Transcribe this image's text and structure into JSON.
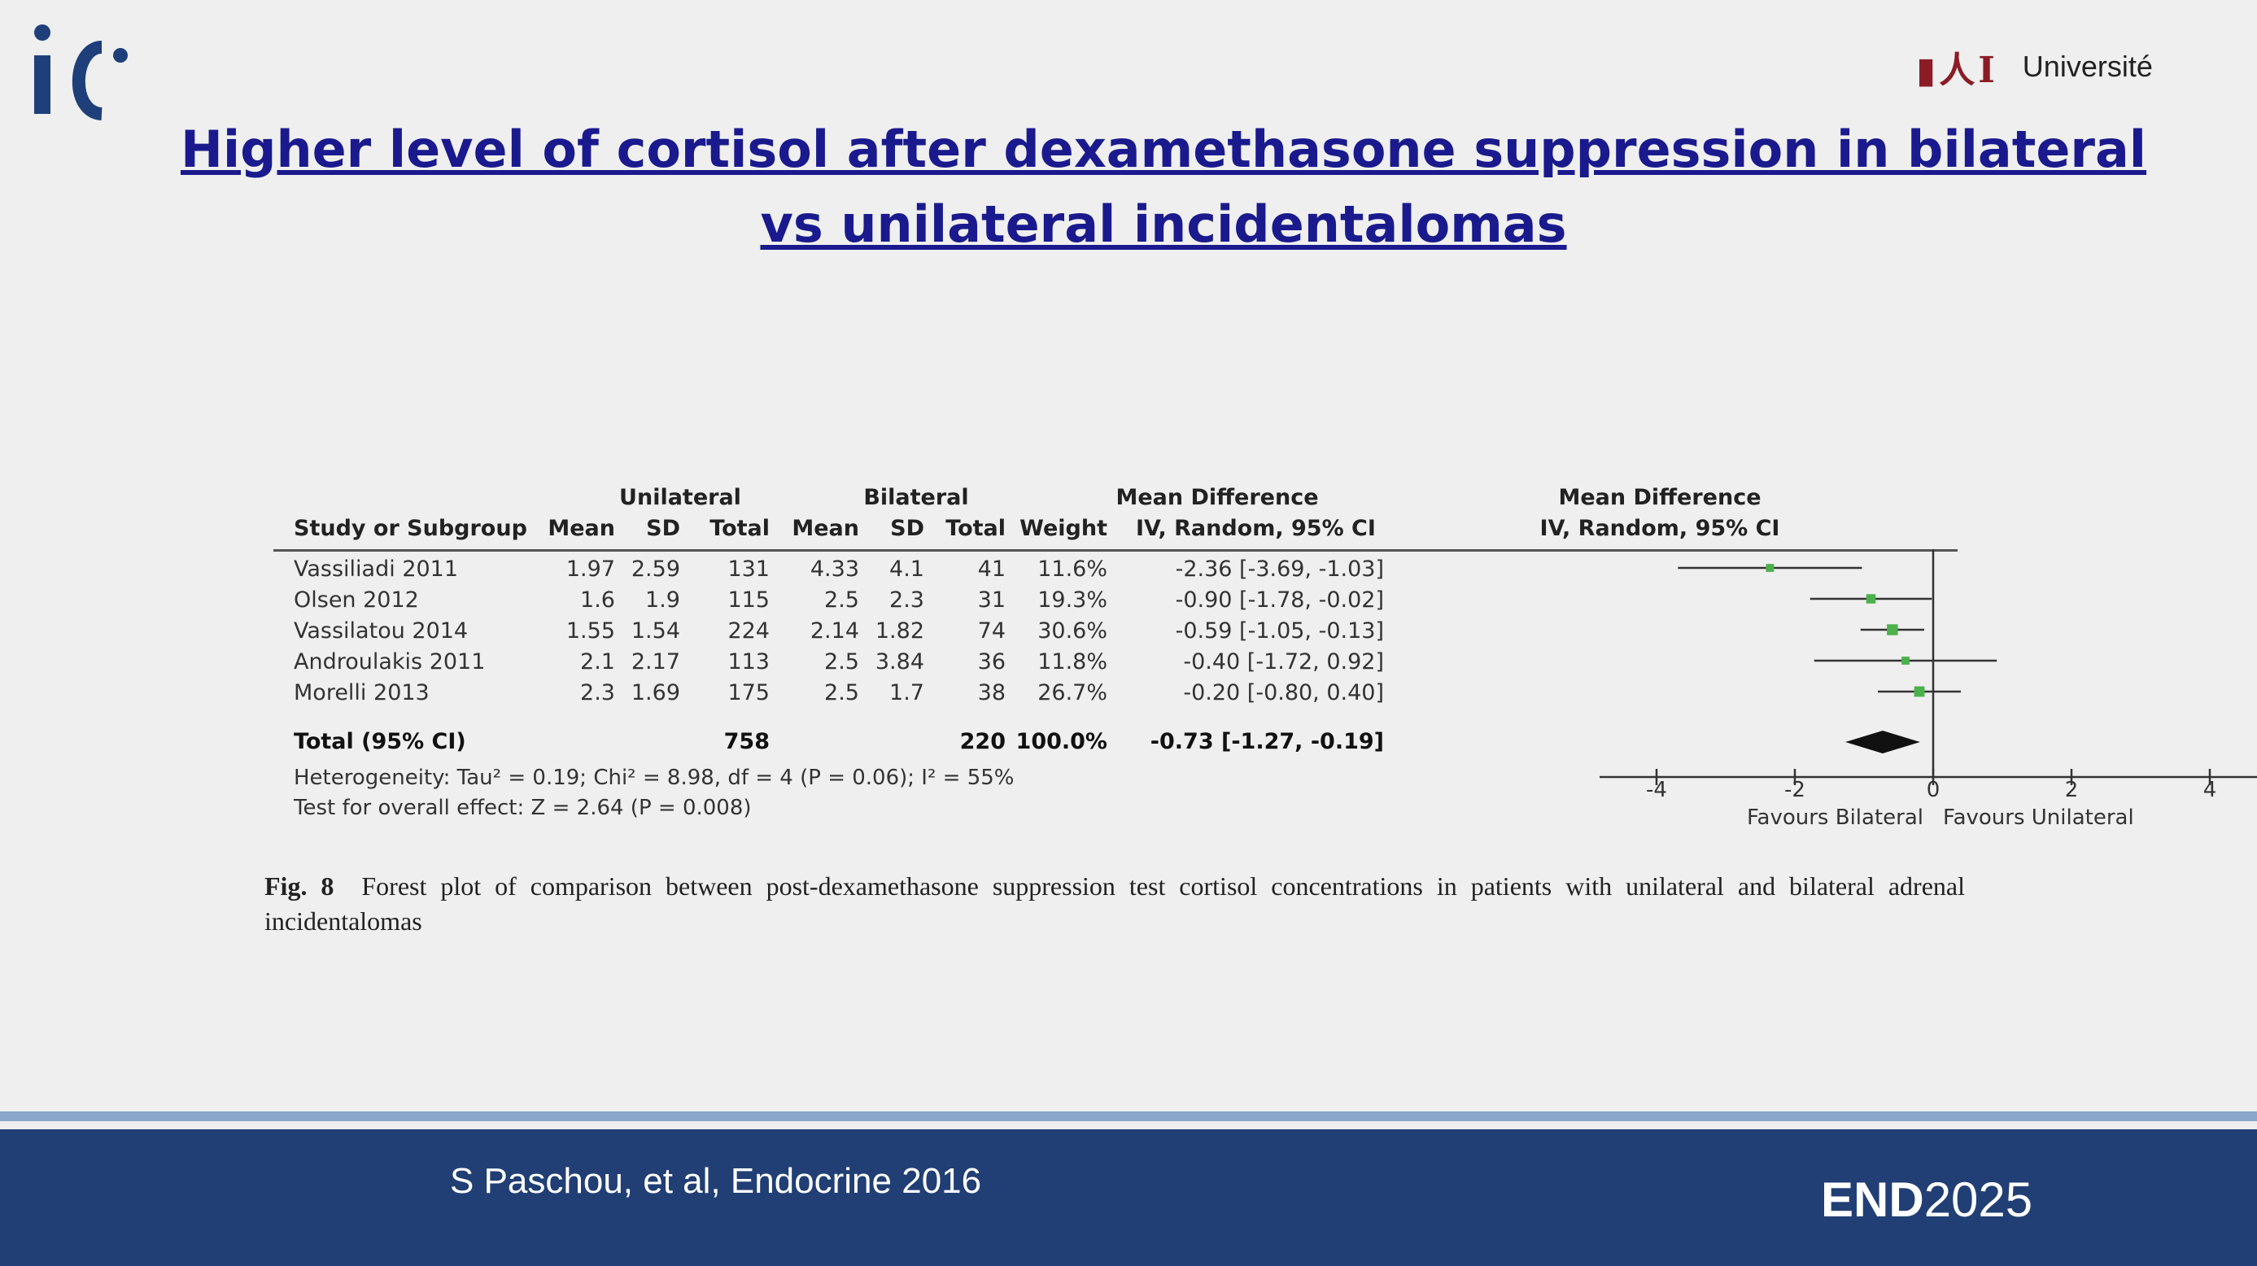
{
  "header": {
    "title": "Higher level of cortisol after dexamethasone suppression in bilateral vs unilateral incidentalomas",
    "university_mark": "▮人Ι",
    "university_name": "Université",
    "accent_color": "#1a1a8e"
  },
  "chart_data": {
    "type": "forest",
    "headers": {
      "study": "Study or Subgroup",
      "group1": "Unilateral",
      "group2": "Bilateral",
      "mean": "Mean",
      "sd": "SD",
      "total": "Total",
      "weight": "Weight",
      "md": "Mean Difference",
      "md_method": "IV, Random, 95% CI"
    },
    "studies": [
      {
        "name": "Vassiliadi 2011",
        "u_mean": "1.97",
        "u_sd": "2.59",
        "u_total": "131",
        "b_mean": "4.33",
        "b_sd": "4.1",
        "b_total": "41",
        "weight": "11.6%",
        "ci_text": "-2.36 [-3.69, -1.03]",
        "md": -2.36,
        "lo": -3.69,
        "hi": -1.03,
        "w": 11.6
      },
      {
        "name": "Olsen 2012",
        "u_mean": "1.6",
        "u_sd": "1.9",
        "u_total": "115",
        "b_mean": "2.5",
        "b_sd": "2.3",
        "b_total": "31",
        "weight": "19.3%",
        "ci_text": "-0.90 [-1.78, -0.02]",
        "md": -0.9,
        "lo": -1.78,
        "hi": -0.02,
        "w": 19.3
      },
      {
        "name": "Vassilatou 2014",
        "u_mean": "1.55",
        "u_sd": "1.54",
        "u_total": "224",
        "b_mean": "2.14",
        "b_sd": "1.82",
        "b_total": "74",
        "weight": "30.6%",
        "ci_text": "-0.59 [-1.05, -0.13]",
        "md": -0.59,
        "lo": -1.05,
        "hi": -0.13,
        "w": 30.6
      },
      {
        "name": "Androulakis 2011",
        "u_mean": "2.1",
        "u_sd": "2.17",
        "u_total": "113",
        "b_mean": "2.5",
        "b_sd": "3.84",
        "b_total": "36",
        "weight": "11.8%",
        "ci_text": "-0.40 [-1.72, 0.92]",
        "md": -0.4,
        "lo": -1.72,
        "hi": 0.92,
        "w": 11.8
      },
      {
        "name": "Morelli 2013",
        "u_mean": "2.3",
        "u_sd": "1.69",
        "u_total": "175",
        "b_mean": "2.5",
        "b_sd": "1.7",
        "b_total": "38",
        "weight": "26.7%",
        "ci_text": "-0.20 [-0.80, 0.40]",
        "md": -0.2,
        "lo": -0.8,
        "hi": 0.4,
        "w": 26.7
      }
    ],
    "total": {
      "label": "Total (95% CI)",
      "u_total": "758",
      "b_total": "220",
      "weight": "100.0%",
      "ci_text": "-0.73 [-1.27, -0.19]",
      "md": -0.73,
      "lo": -1.27,
      "hi": -0.19
    },
    "heterogeneity": "Heterogeneity: Tau² = 0.19; Chi² = 8.98, df = 4 (P = 0.06); I² = 55%",
    "overall_effect": "Test for overall effect: Z = 2.64 (P = 0.008)",
    "xlim": [
      -4,
      4
    ],
    "xticks": [
      "-4",
      "-2",
      "0",
      "2",
      "4"
    ],
    "favours_left": "Favours Bilateral",
    "favours_right": "Favours Unilateral",
    "marker_color": "#4cb04c"
  },
  "caption": {
    "label": "Fig. 8",
    "text": "Forest plot of comparison between post-dexamethasone suppression test cortisol concentrations in patients with unilateral and bilateral adrenal incidentalomas"
  },
  "footer": {
    "citation": "S Paschou, et al, Endocrine 2016",
    "endo_bold": "END",
    "endo_year": "2025",
    "bar_color": "#213f74"
  }
}
